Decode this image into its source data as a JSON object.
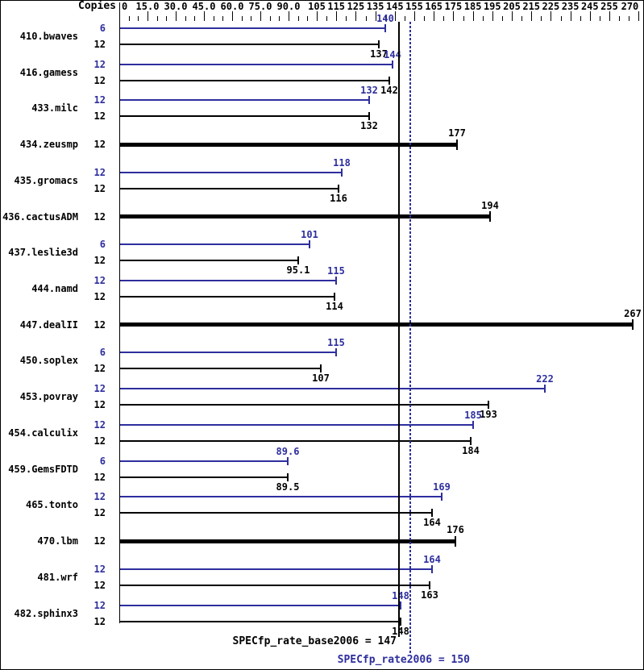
{
  "header": {
    "copies_label": "Copies"
  },
  "colors": {
    "peak": "#2e2e9e",
    "base": "#000000",
    "background": "#ffffff"
  },
  "summary": {
    "base_label": "SPECfp_rate_base2006 = 147",
    "peak_label": "SPECfp_rate2006 = 150",
    "base_value": 147,
    "peak_value": 150
  },
  "chart_data": {
    "type": "bar",
    "orientation": "horizontal",
    "title": "",
    "xlabel": "",
    "ylabel": "Copies",
    "grid": false,
    "legend_position": "none",
    "axis": {
      "min": 0,
      "max": 270,
      "minor_tick_step": 5,
      "major_ticks": [
        {
          "value": 0,
          "label": "0",
          "align": "left"
        },
        {
          "value": 15,
          "label": "15.0"
        },
        {
          "value": 30,
          "label": "30.0"
        },
        {
          "value": 45,
          "label": "45.0"
        },
        {
          "value": 60,
          "label": "60.0"
        },
        {
          "value": 75,
          "label": "75.0"
        },
        {
          "value": 90,
          "label": "90.0"
        },
        {
          "value": 105,
          "label": "105"
        },
        {
          "value": 115,
          "label": "115"
        },
        {
          "value": 125,
          "label": "125"
        },
        {
          "value": 135,
          "label": "135"
        },
        {
          "value": 145,
          "label": "145"
        },
        {
          "value": 155,
          "label": "155"
        },
        {
          "value": 165,
          "label": "165"
        },
        {
          "value": 175,
          "label": "175"
        },
        {
          "value": 185,
          "label": "185"
        },
        {
          "value": 195,
          "label": "195"
        },
        {
          "value": 205,
          "label": "205"
        },
        {
          "value": 215,
          "label": "215"
        },
        {
          "value": 225,
          "label": "225"
        },
        {
          "value": 235,
          "label": "235"
        },
        {
          "value": 245,
          "label": "245"
        },
        {
          "value": 255,
          "label": "255"
        },
        {
          "value": 270,
          "label": "270",
          "align": "right"
        }
      ]
    },
    "reference_lines": [
      {
        "name": "SPECfp_rate_base2006",
        "value": 147,
        "style": "solid",
        "color": "base"
      },
      {
        "name": "SPECfp_rate2006",
        "value": 150,
        "style": "dotted",
        "color": "peak"
      }
    ],
    "benchmarks": [
      {
        "name": "410.bwaves",
        "runs": [
          {
            "copies": 6,
            "value": 140,
            "label": "140",
            "type": "peak"
          },
          {
            "copies": 12,
            "value": 137,
            "label": "137",
            "type": "base"
          }
        ]
      },
      {
        "name": "416.gamess",
        "runs": [
          {
            "copies": 12,
            "value": 144,
            "label": "144",
            "type": "peak"
          },
          {
            "copies": 12,
            "value": 142,
            "label": "142",
            "type": "base"
          }
        ]
      },
      {
        "name": "433.milc",
        "runs": [
          {
            "copies": 12,
            "value": 132,
            "label": "132",
            "type": "peak"
          },
          {
            "copies": 12,
            "value": 132,
            "label": "132",
            "type": "base"
          }
        ]
      },
      {
        "name": "434.zeusmp",
        "runs": [
          {
            "copies": 12,
            "value": 177,
            "label": "177",
            "type": "basepeak"
          }
        ]
      },
      {
        "name": "435.gromacs",
        "runs": [
          {
            "copies": 12,
            "value": 118,
            "label": "118",
            "type": "peak"
          },
          {
            "copies": 12,
            "value": 116,
            "label": "116",
            "type": "base"
          }
        ]
      },
      {
        "name": "436.cactusADM",
        "runs": [
          {
            "copies": 12,
            "value": 194,
            "label": "194",
            "type": "basepeak"
          }
        ]
      },
      {
        "name": "437.leslie3d",
        "runs": [
          {
            "copies": 6,
            "value": 101,
            "label": "101",
            "type": "peak"
          },
          {
            "copies": 12,
            "value": 95.1,
            "label": "95.1",
            "type": "base"
          }
        ]
      },
      {
        "name": "444.namd",
        "runs": [
          {
            "copies": 12,
            "value": 115,
            "label": "115",
            "type": "peak"
          },
          {
            "copies": 12,
            "value": 114,
            "label": "114",
            "type": "base"
          }
        ]
      },
      {
        "name": "447.dealII",
        "runs": [
          {
            "copies": 12,
            "value": 267,
            "label": "267",
            "type": "basepeak"
          }
        ]
      },
      {
        "name": "450.soplex",
        "runs": [
          {
            "copies": 6,
            "value": 115,
            "label": "115",
            "type": "peak"
          },
          {
            "copies": 12,
            "value": 107,
            "label": "107",
            "type": "base"
          }
        ]
      },
      {
        "name": "453.povray",
        "runs": [
          {
            "copies": 12,
            "value": 222,
            "label": "222",
            "type": "peak"
          },
          {
            "copies": 12,
            "value": 193,
            "label": "193",
            "type": "base"
          }
        ]
      },
      {
        "name": "454.calculix",
        "runs": [
          {
            "copies": 12,
            "value": 185,
            "label": "185",
            "type": "peak"
          },
          {
            "copies": 12,
            "value": 184,
            "label": "184",
            "type": "base"
          }
        ]
      },
      {
        "name": "459.GemsFDTD",
        "runs": [
          {
            "copies": 6,
            "value": 89.6,
            "label": "89.6",
            "type": "peak"
          },
          {
            "copies": 12,
            "value": 89.5,
            "label": "89.5",
            "type": "base"
          }
        ]
      },
      {
        "name": "465.tonto",
        "runs": [
          {
            "copies": 12,
            "value": 169,
            "label": "169",
            "type": "peak"
          },
          {
            "copies": 12,
            "value": 164,
            "label": "164",
            "type": "base"
          }
        ]
      },
      {
        "name": "470.lbm",
        "runs": [
          {
            "copies": 12,
            "value": 176,
            "label": "176",
            "type": "basepeak"
          }
        ]
      },
      {
        "name": "481.wrf",
        "runs": [
          {
            "copies": 12,
            "value": 164,
            "label": "164",
            "type": "peak"
          },
          {
            "copies": 12,
            "value": 163,
            "label": "163",
            "type": "base"
          }
        ]
      },
      {
        "name": "482.sphinx3",
        "runs": [
          {
            "copies": 12,
            "value": 148,
            "label": "148",
            "type": "peak"
          },
          {
            "copies": 12,
            "value": 148,
            "label": "148",
            "type": "base"
          }
        ]
      }
    ]
  }
}
